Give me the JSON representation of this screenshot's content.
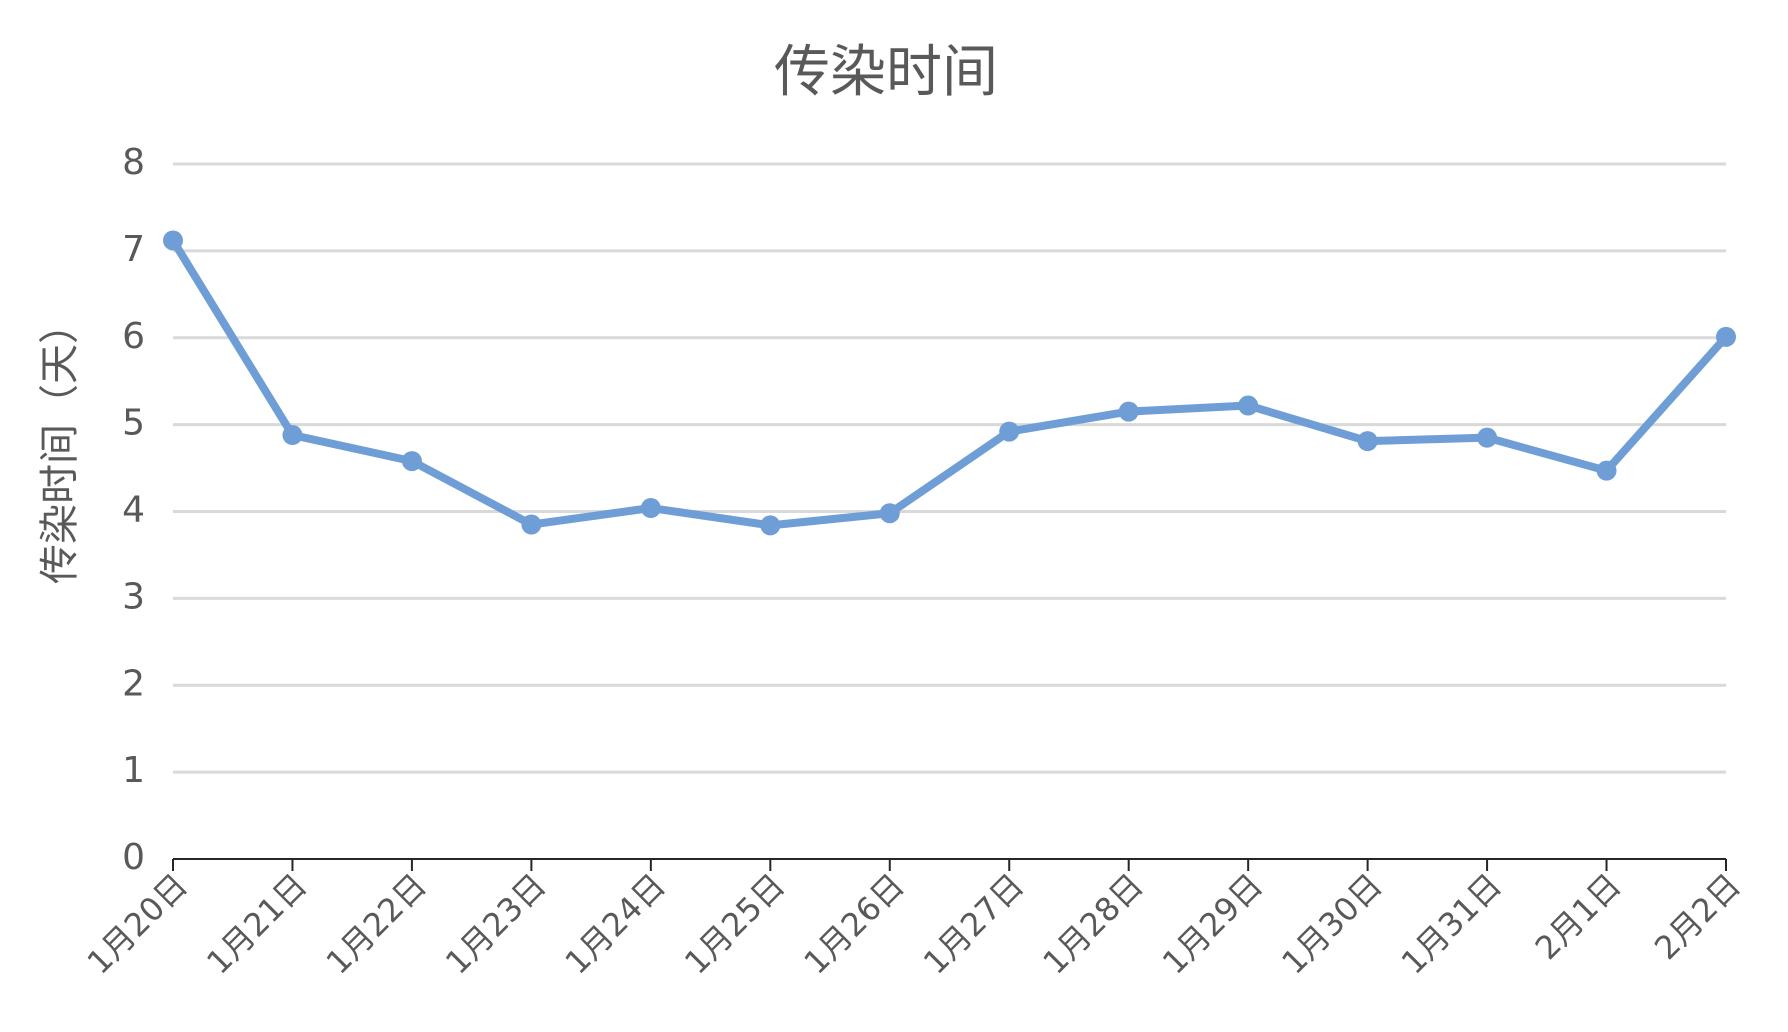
{
  "chart_data": {
    "type": "line",
    "title": "传染时间",
    "y_label": "传染时间（天）",
    "categories": [
      "1月20日",
      "1月21日",
      "1月22日",
      "1月23日",
      "1月24日",
      "1月25日",
      "1月26日",
      "1月27日",
      "1月28日",
      "1月29日",
      "1月30日",
      "1月31日",
      "2月1日",
      "2月2日"
    ],
    "values": [
      7.12,
      4.88,
      4.58,
      3.85,
      4.04,
      3.84,
      3.98,
      4.92,
      5.15,
      5.22,
      4.81,
      4.85,
      4.47,
      6.01
    ],
    "color": "#6f9ed6",
    "ylim": [
      0,
      8
    ],
    "yticks": [
      0,
      1,
      2,
      3,
      4,
      5,
      6,
      7,
      8
    ],
    "grid": true
  }
}
